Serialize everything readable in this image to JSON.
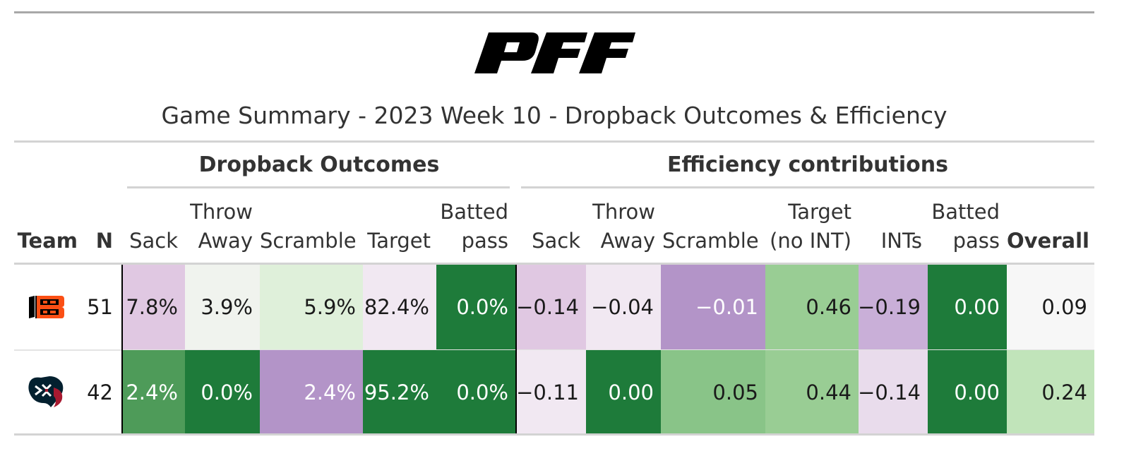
{
  "brand": {
    "logo_text": "PFF"
  },
  "title": "Game Summary - 2023 Week 10 - Dropback Outcomes & Efficiency",
  "groups": {
    "dropback": "Dropback Outcomes",
    "efficiency": "Efficiency contributions"
  },
  "columns": {
    "team": "Team",
    "n": "N",
    "d_sack": "Sack",
    "d_throw_away": "Throw\nAway",
    "d_scramble": "Scramble",
    "d_target": "Target",
    "d_batted": "Batted\npass",
    "e_sack": "Sack",
    "e_throw_away": "Throw\nAway",
    "e_scramble": "Scramble",
    "e_target": "Target\n(no INT)",
    "e_ints": "INTs",
    "e_batted": "Batted\npass",
    "e_overall": "Overall"
  },
  "rows": [
    {
      "team": "Cincinnati Bengals",
      "team_icon": "bengals-logo-icon",
      "n": "51",
      "d_sack": "7.8%",
      "d_throw_away": "3.9%",
      "d_scramble": "5.9%",
      "d_target": "82.4%",
      "d_batted": "0.0%",
      "e_sack": "−0.14",
      "e_throw_away": "−0.04",
      "e_scramble": "−0.01",
      "e_target": "0.46",
      "e_ints": "−0.19",
      "e_batted": "0.00",
      "e_overall": "0.09"
    },
    {
      "team": "Houston Texans",
      "team_icon": "texans-logo-icon",
      "n": "42",
      "d_sack": "2.4%",
      "d_throw_away": "0.0%",
      "d_scramble": "2.4%",
      "d_target": "95.2%",
      "d_batted": "0.0%",
      "e_sack": "−0.11",
      "e_throw_away": "0.00",
      "e_scramble": "0.05",
      "e_target": "0.44",
      "e_ints": "−0.14",
      "e_batted": "0.00",
      "e_overall": "0.24"
    }
  ],
  "colors": {
    "dark_green": "#1e7b3a",
    "mid_green": "#4e9b59",
    "green_2": "#89c488",
    "green_3": "#99cd94",
    "green_4": "#c1e4ba",
    "pale_green": "#dff0da",
    "off_white": "#f0f3ee",
    "lavender_pale": "#f1e8f2",
    "lavender_light": "#e0c8e2",
    "lavender_mid": "#c9afd8",
    "purple": "#b394c8",
    "neutral": "#f7f7f7",
    "bengals_orange": "#fb4f14",
    "texans_navy": "#03202f",
    "texans_red": "#a71930"
  }
}
